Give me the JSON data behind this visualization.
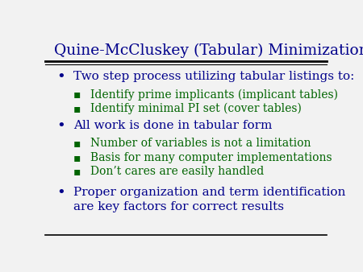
{
  "title": "Quine-McCluskey (Tabular) Minimization",
  "title_color": "#00008B",
  "title_fontsize": 13.5,
  "bg_color": "#F2F2F2",
  "bullet_color": "#00008B",
  "sub_bullet_color": "#006400",
  "bullet1": "Two step process utilizing tabular listings to:",
  "sub1a": "Identify prime implicants (implicant tables)",
  "sub1b": "Identify minimal PI set (cover tables)",
  "bullet2": "All work is done in tabular form",
  "sub2a": "Number of variables is not a limitation",
  "sub2b": "Basis for many computer implementations",
  "sub2c": "Don’t cares are easily handled",
  "bullet3_line1": "Proper organization and term identification",
  "bullet3_line2": "are key factors for correct results",
  "main_bullet_size": 11,
  "sub_bullet_size": 10
}
